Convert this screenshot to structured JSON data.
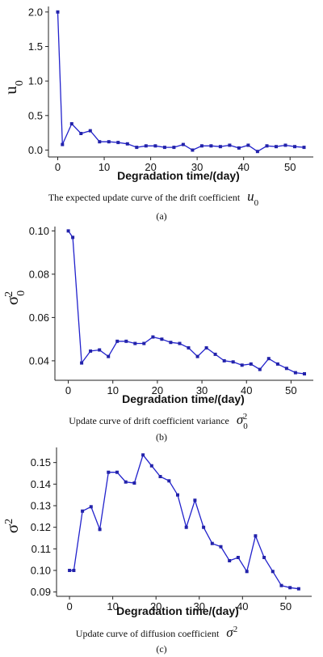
{
  "chart_data": [
    {
      "type": "line",
      "panel": "(a)",
      "caption": "The expected update curve of the drift coefficient",
      "caption_symbol": "u",
      "caption_symbol_sub": "0",
      "ylabel": "u",
      "ylabel_sub": "0",
      "xlabel": "Degradation time/(day)",
      "xlim": [
        -2,
        55
      ],
      "ylim": [
        -0.1,
        2.08
      ],
      "xticks": [
        0,
        10,
        20,
        30,
        40,
        50
      ],
      "yticks": [
        0.0,
        0.5,
        1.0,
        1.5,
        2.0
      ],
      "ytick_labels": [
        "0.0",
        "0.5",
        "1.0",
        "1.5",
        "2.0"
      ],
      "grid": false,
      "color": "#2222cc",
      "series": [
        {
          "x": [
            0,
            1,
            3,
            5,
            7,
            9,
            11,
            13,
            15,
            17,
            19,
            21,
            23,
            25,
            27,
            29,
            31,
            33,
            35,
            37,
            39,
            41,
            43,
            45,
            47,
            49,
            51,
            53
          ],
          "y": [
            2.0,
            0.08,
            0.38,
            0.24,
            0.28,
            0.12,
            0.12,
            0.11,
            0.09,
            0.04,
            0.06,
            0.06,
            0.04,
            0.04,
            0.08,
            0.0,
            0.06,
            0.06,
            0.05,
            0.07,
            0.03,
            0.07,
            -0.02,
            0.06,
            0.05,
            0.07,
            0.05,
            0.04
          ]
        }
      ]
    },
    {
      "type": "line",
      "panel": "(b)",
      "caption": "Update curve of drift coefficient variance",
      "caption_symbol": "σ",
      "caption_symbol_sub": "0",
      "caption_symbol_sup": "2",
      "ylabel": "σ",
      "ylabel_sub": "0",
      "ylabel_sup": "2",
      "xlabel": "Degradation time/(day)",
      "xlim": [
        -3,
        55
      ],
      "ylim": [
        0.031,
        0.102
      ],
      "xticks": [
        0,
        10,
        20,
        30,
        40,
        50
      ],
      "yticks": [
        0.04,
        0.06,
        0.08,
        0.1
      ],
      "ytick_labels": [
        "0.04",
        "0.06",
        "0.08",
        "0.10"
      ],
      "grid": false,
      "color": "#2222cc",
      "series": [
        {
          "x": [
            0,
            1,
            3,
            5,
            7,
            9,
            11,
            13,
            15,
            17,
            19,
            21,
            23,
            25,
            27,
            29,
            31,
            33,
            35,
            37,
            39,
            41,
            43,
            45,
            47,
            49,
            51,
            53
          ],
          "y": [
            0.1,
            0.097,
            0.039,
            0.0445,
            0.045,
            0.042,
            0.049,
            0.049,
            0.048,
            0.048,
            0.051,
            0.05,
            0.0485,
            0.048,
            0.046,
            0.042,
            0.046,
            0.043,
            0.04,
            0.0395,
            0.038,
            0.0385,
            0.036,
            0.041,
            0.0385,
            0.0365,
            0.0345,
            0.034
          ]
        }
      ]
    },
    {
      "type": "line",
      "panel": "(c)",
      "caption": "Update curve of diffusion coefficient",
      "caption_symbol": "σ",
      "caption_symbol_sup": "2",
      "ylabel": "σ",
      "ylabel_sup": "2",
      "xlabel": "Degradation time/(day)",
      "xlim": [
        -3,
        56
      ],
      "ylim": [
        0.088,
        0.157
      ],
      "xticks": [
        0,
        10,
        20,
        30,
        40,
        50
      ],
      "yticks": [
        0.09,
        0.1,
        0.11,
        0.12,
        0.13,
        0.14,
        0.15
      ],
      "ytick_labels": [
        "0.09",
        "0.10",
        "0.11",
        "0.12",
        "0.13",
        "0.14",
        "0.15"
      ],
      "grid": false,
      "color": "#2222cc",
      "series": [
        {
          "x": [
            0,
            1,
            3,
            5,
            7,
            9,
            11,
            13,
            15,
            17,
            19,
            21,
            23,
            25,
            27,
            29,
            31,
            33,
            35,
            37,
            39,
            41,
            43,
            45,
            47,
            49,
            51,
            53
          ],
          "y": [
            0.1,
            0.1,
            0.1275,
            0.1295,
            0.119,
            0.1455,
            0.1455,
            0.141,
            0.1405,
            0.1535,
            0.1485,
            0.1435,
            0.1415,
            0.135,
            0.12,
            0.1325,
            0.12,
            0.1125,
            0.111,
            0.1045,
            0.106,
            0.0995,
            0.116,
            0.106,
            0.0995,
            0.093,
            0.092,
            0.0915
          ]
        }
      ]
    }
  ]
}
